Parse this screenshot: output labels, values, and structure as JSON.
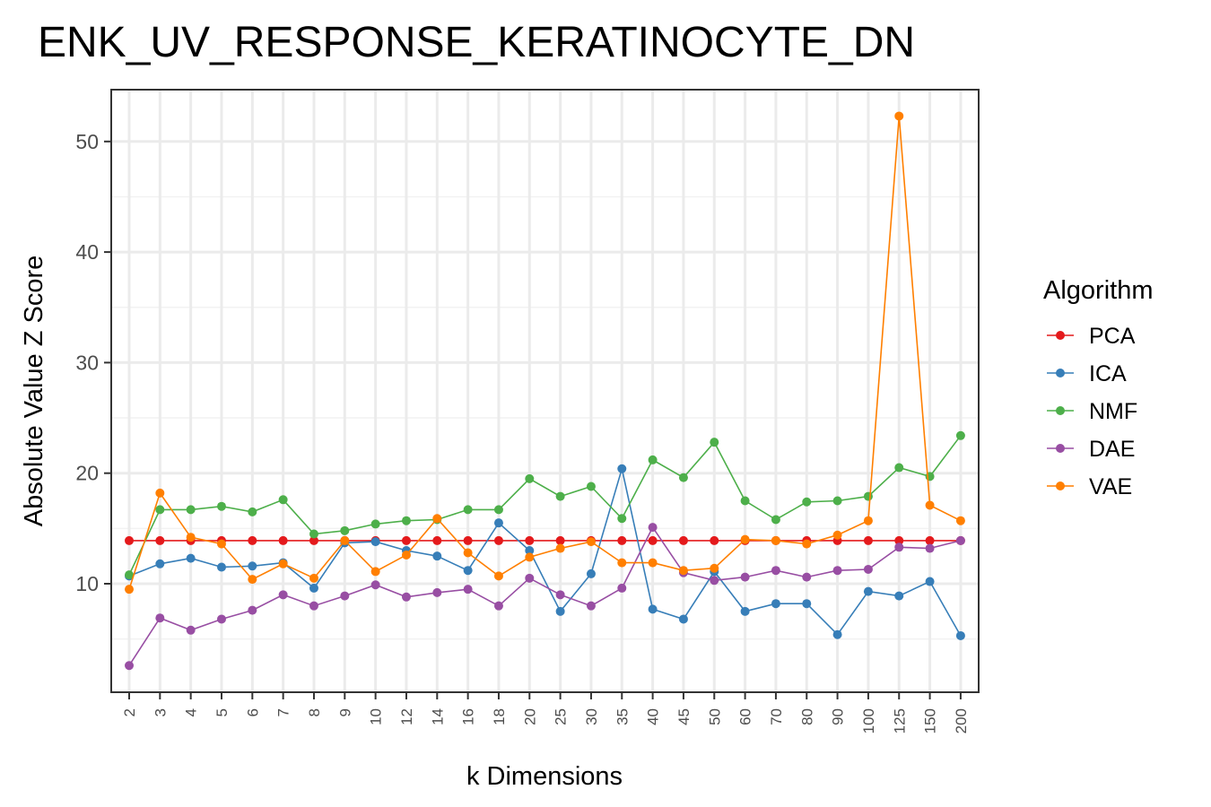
{
  "chart_data": {
    "type": "line",
    "title": "ENK_UV_RESPONSE_KERATINOCYTE_DN",
    "xlabel": "k Dimensions",
    "ylabel": "Absolute Value Z Score",
    "categories": [
      "2",
      "3",
      "4",
      "5",
      "6",
      "7",
      "8",
      "9",
      "10",
      "12",
      "14",
      "16",
      "18",
      "20",
      "25",
      "30",
      "35",
      "40",
      "45",
      "50",
      "60",
      "70",
      "80",
      "90",
      "100",
      "125",
      "150",
      "200"
    ],
    "y_ticks": [
      10,
      20,
      30,
      40,
      50
    ],
    "ylim": [
      0.5,
      55
    ],
    "grid": true,
    "legend": {
      "title": "Algorithm",
      "position": "right"
    },
    "series": [
      {
        "name": "PCA",
        "color": "#E41A1C",
        "values": [
          13.9,
          13.9,
          13.9,
          13.9,
          13.9,
          13.9,
          13.9,
          13.9,
          13.9,
          13.9,
          13.9,
          13.9,
          13.9,
          13.9,
          13.9,
          13.9,
          13.9,
          13.9,
          13.9,
          13.9,
          13.9,
          13.9,
          13.9,
          13.9,
          13.9,
          13.9,
          13.9,
          13.9
        ]
      },
      {
        "name": "ICA",
        "color": "#377EB8",
        "values": [
          10.7,
          11.8,
          12.3,
          11.5,
          11.6,
          11.9,
          9.6,
          13.7,
          13.8,
          13.0,
          12.5,
          11.2,
          15.5,
          13.0,
          7.5,
          10.9,
          20.4,
          7.7,
          6.8,
          11.1,
          7.5,
          8.2,
          8.2,
          5.4,
          9.3,
          8.9,
          10.2,
          5.3
        ]
      },
      {
        "name": "NMF",
        "color": "#4DAF4A",
        "values": [
          10.8,
          16.7,
          16.7,
          17.0,
          16.5,
          17.6,
          14.5,
          14.8,
          15.4,
          15.7,
          15.8,
          16.7,
          16.7,
          19.5,
          17.9,
          18.8,
          15.9,
          21.2,
          19.6,
          22.8,
          17.5,
          15.8,
          17.4,
          17.5,
          17.9,
          20.5,
          19.7,
          23.4
        ]
      },
      {
        "name": "DAE",
        "color": "#984EA3",
        "values": [
          2.6,
          6.9,
          5.8,
          6.8,
          7.6,
          9.0,
          8.0,
          8.9,
          9.9,
          8.8,
          9.2,
          9.5,
          8.0,
          10.5,
          9.0,
          8.0,
          9.6,
          15.1,
          11.0,
          10.3,
          10.6,
          11.2,
          10.6,
          11.2,
          11.3,
          13.3,
          13.2,
          13.9
        ]
      },
      {
        "name": "VAE",
        "color": "#FF7F00",
        "values": [
          9.5,
          18.2,
          14.2,
          13.6,
          10.4,
          11.8,
          10.5,
          13.9,
          11.1,
          12.6,
          15.9,
          12.8,
          10.7,
          12.4,
          13.2,
          13.8,
          11.9,
          11.9,
          11.2,
          11.4,
          14.0,
          13.9,
          13.6,
          14.4,
          15.7,
          52.3,
          17.1,
          15.7
        ]
      }
    ]
  }
}
